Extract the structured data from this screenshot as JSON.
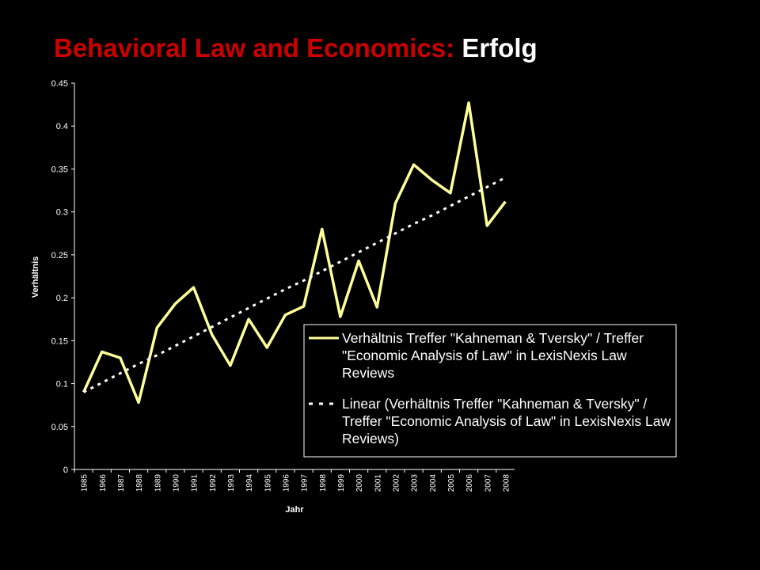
{
  "chart_data": {
    "type": "line",
    "title_parts": [
      {
        "text": "Behavioral Law and Economics:",
        "color": "#cc0000"
      },
      {
        "text": "Erfolg",
        "color": "#ffffff"
      }
    ],
    "x_label": "Jahr",
    "y_label": "Verhältnis",
    "categories": [
      "1985",
      "1966",
      "1987",
      "1988",
      "1989",
      "1990",
      "1991",
      "1992",
      "1993",
      "1994",
      "1995",
      "1996",
      "1997",
      "1998",
      "1999",
      "2000",
      "2001",
      "2002",
      "2003",
      "2004",
      "2005",
      "2006",
      "2007",
      "2008"
    ],
    "series": [
      {
        "name": "Verhältnis Treffer \"Kahneman & Tversky\" / Treffer \"Economic Analysis of Law\" in LexisNexis Law Reviews",
        "color": "#ffff99",
        "dash": false,
        "values": [
          0.09,
          0.137,
          0.13,
          0.078,
          0.165,
          0.193,
          0.212,
          0.157,
          0.121,
          0.175,
          0.142,
          0.18,
          0.19,
          0.28,
          0.178,
          0.243,
          0.189,
          0.31,
          0.355,
          0.337,
          0.322,
          0.427,
          0.284,
          0.312
        ]
      },
      {
        "name": "Linear (Verhältnis Treffer \"Kahneman & Tversky\" / Treffer \"Economic Analysis of Law\" in LexisNexis Law Reviews)",
        "color": "#ffffff",
        "dash": true,
        "values": [
          0.09,
          0.101,
          0.112,
          0.123,
          0.133,
          0.144,
          0.155,
          0.166,
          0.177,
          0.188,
          0.199,
          0.21,
          0.22,
          0.231,
          0.242,
          0.253,
          0.264,
          0.275,
          0.286,
          0.296,
          0.307,
          0.318,
          0.329,
          0.34
        ]
      }
    ],
    "ylim": [
      0,
      0.45
    ],
    "yticks": [
      0,
      0.05,
      0.1,
      0.15,
      0.2,
      0.25,
      0.3,
      0.35,
      0.4,
      0.45
    ],
    "grid": false
  }
}
